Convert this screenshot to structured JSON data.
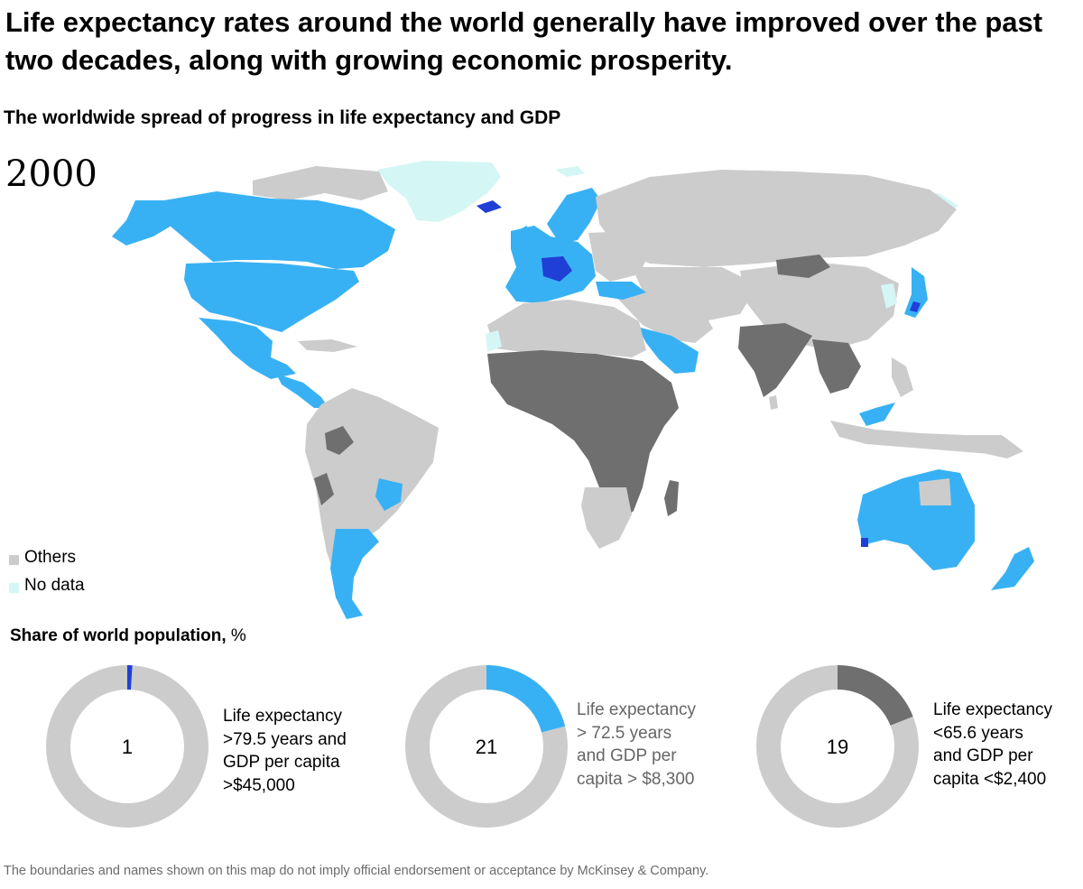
{
  "headline": "Life expectancy rates around the world generally have improved over the past two decades, along with growing economic prosperity.",
  "subtitle": "The worldwide spread of progress in life expectancy and GDP",
  "year": "2000",
  "colors": {
    "highest_tier": "#1f3fd6",
    "upper_tier": "#38b1f4",
    "lowest_tier": "#6f6f6f",
    "others": "#cccccc",
    "no_data": "#d4f6f5"
  },
  "legend": [
    {
      "label": "Others",
      "color": "#cccccc"
    },
    {
      "label": "No data",
      "color": "#d4f6f5"
    }
  ],
  "share": {
    "title": "Share of world population,",
    "unit": "%"
  },
  "donuts": [
    {
      "value": 1,
      "color": "#1f3fd6",
      "label_lines": [
        "Life expectancy",
        ">79.5 years and",
        "GDP per capita",
        ">$45,000"
      ],
      "label_color": "#000000"
    },
    {
      "value": 21,
      "color": "#38b1f4",
      "label_lines": [
        "Life expectancy",
        "> 72.5 years",
        "and GDP per",
        "capita > $8,300"
      ],
      "label_color": "#666666"
    },
    {
      "value": 19,
      "color": "#6f6f6f",
      "label_lines": [
        "Life expectancy",
        "<65.6 years",
        "and GDP per",
        "capita <$2,400"
      ],
      "label_color": "#000000"
    }
  ],
  "footnote": "The boundaries and names shown on this map do not imply official endorsement or acceptance by McKinsey & Company."
}
